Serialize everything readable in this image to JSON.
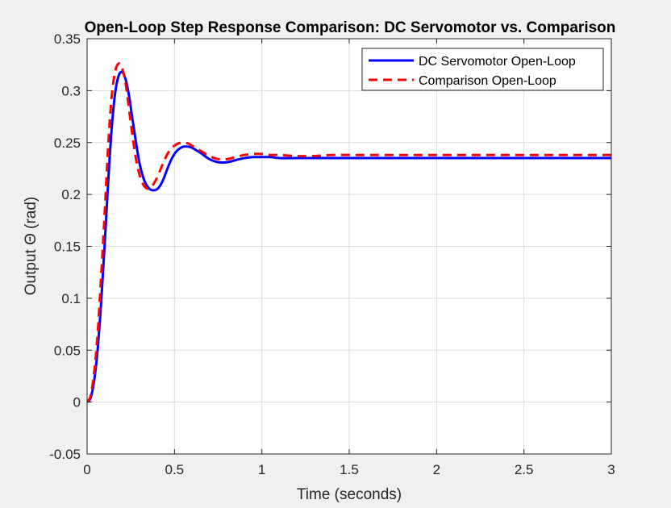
{
  "chart_data": {
    "type": "line",
    "title": "Open-Loop Step Response Comparison: DC Servomotor vs. Comparison",
    "xlabel": "Time (seconds)",
    "ylabel": "Output Θ (rad)",
    "xlim": [
      0,
      3
    ],
    "ylim": [
      -0.05,
      0.35
    ],
    "xticks": [
      0,
      0.5,
      1,
      1.5,
      2,
      2.5,
      3
    ],
    "xtick_labels": [
      "0",
      "0.5",
      "1",
      "1.5",
      "2",
      "2.5",
      "3"
    ],
    "yticks": [
      -0.05,
      0,
      0.05,
      0.1,
      0.15,
      0.2,
      0.25,
      0.3,
      0.35
    ],
    "ytick_labels": [
      "-0.05",
      "0",
      "0.05",
      "0.1",
      "0.15",
      "0.2",
      "0.25",
      "0.3",
      "0.35"
    ],
    "grid": true,
    "legend_position": "top-right",
    "series": [
      {
        "name": "DC Servomotor Open-Loop",
        "color": "#0000ff",
        "style": "solid",
        "x": [
          0,
          0.02,
          0.04,
          0.06,
          0.08,
          0.1,
          0.12,
          0.14,
          0.16,
          0.18,
          0.2,
          0.22,
          0.24,
          0.26,
          0.28,
          0.3,
          0.32,
          0.34,
          0.36,
          0.38,
          0.4,
          0.42,
          0.44,
          0.46,
          0.48,
          0.5,
          0.52,
          0.55,
          0.58,
          0.6,
          0.62,
          0.65,
          0.7,
          0.75,
          0.8,
          0.85,
          0.9,
          0.95,
          1.0,
          1.05,
          1.1,
          1.2,
          1.3,
          1.4,
          1.5,
          1.6,
          1.8,
          2.0,
          2.2,
          2.4,
          2.6,
          2.8,
          3.0
        ],
        "y": [
          0,
          0.004,
          0.02,
          0.05,
          0.095,
          0.15,
          0.21,
          0.262,
          0.297,
          0.314,
          0.318,
          0.311,
          0.295,
          0.272,
          0.25,
          0.23,
          0.217,
          0.209,
          0.205,
          0.204,
          0.205,
          0.209,
          0.216,
          0.225,
          0.233,
          0.239,
          0.243,
          0.246,
          0.246,
          0.245,
          0.243,
          0.24,
          0.234,
          0.231,
          0.231,
          0.233,
          0.235,
          0.236,
          0.236,
          0.236,
          0.235,
          0.235,
          0.235,
          0.235,
          0.235,
          0.235,
          0.235,
          0.235,
          0.235,
          0.235,
          0.235,
          0.235,
          0.235
        ]
      },
      {
        "name": "Comparison Open-Loop",
        "color": "#ff0000",
        "style": "dashed",
        "x": [
          0,
          0.02,
          0.04,
          0.06,
          0.08,
          0.1,
          0.12,
          0.14,
          0.16,
          0.18,
          0.2,
          0.22,
          0.24,
          0.26,
          0.28,
          0.3,
          0.32,
          0.34,
          0.36,
          0.38,
          0.4,
          0.42,
          0.44,
          0.46,
          0.48,
          0.5,
          0.52,
          0.55,
          0.58,
          0.6,
          0.62,
          0.65,
          0.7,
          0.75,
          0.8,
          0.85,
          0.9,
          0.95,
          1.0,
          1.05,
          1.1,
          1.2,
          1.3,
          1.4,
          1.5,
          1.6,
          1.8,
          2.0,
          2.2,
          2.4,
          2.6,
          2.8,
          3.0
        ],
        "y": [
          0,
          0.006,
          0.028,
          0.065,
          0.12,
          0.18,
          0.245,
          0.293,
          0.318,
          0.326,
          0.322,
          0.307,
          0.282,
          0.256,
          0.234,
          0.219,
          0.21,
          0.206,
          0.206,
          0.21,
          0.216,
          0.224,
          0.232,
          0.239,
          0.244,
          0.247,
          0.249,
          0.25,
          0.249,
          0.247,
          0.245,
          0.242,
          0.237,
          0.234,
          0.234,
          0.236,
          0.238,
          0.239,
          0.239,
          0.238,
          0.238,
          0.237,
          0.237,
          0.238,
          0.238,
          0.238,
          0.238,
          0.238,
          0.238,
          0.238,
          0.238,
          0.238,
          0.238
        ]
      }
    ]
  }
}
